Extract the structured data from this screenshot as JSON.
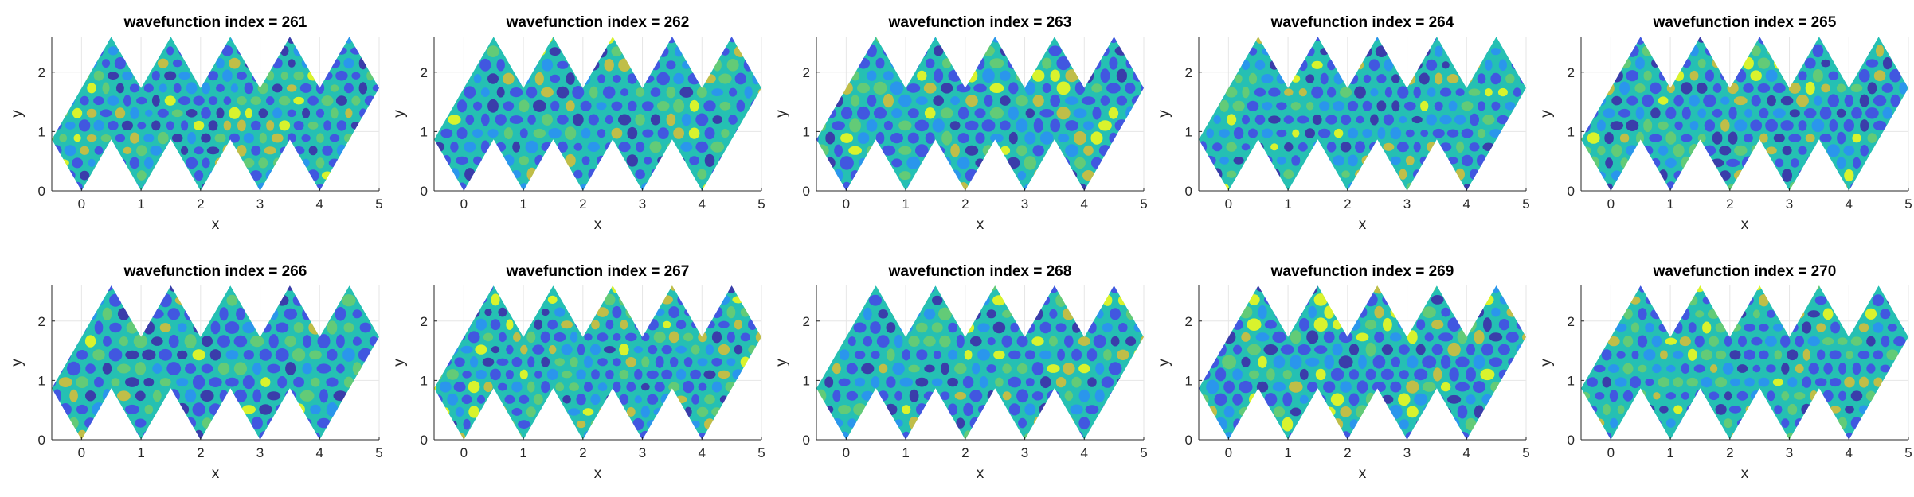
{
  "figure": {
    "colormap": [
      "#3e26a8",
      "#4744e8",
      "#2c8ef6",
      "#1fb5d9",
      "#25c0b3",
      "#6ecc6c",
      "#dcbd35",
      "#f9fb15"
    ],
    "grid": true,
    "axis_color": "#262626",
    "grid_color": "#e6e6e6"
  },
  "chart_data": [
    {
      "type": "heatmap",
      "title": "wavefunction index = 261",
      "xlabel": "x",
      "ylabel": "y",
      "xlim": [
        -0.5,
        5
      ],
      "ylim": [
        0,
        2.6
      ],
      "xticks": [
        "0",
        "1",
        "2",
        "3",
        "4",
        "5"
      ],
      "yticks": [
        "0",
        "1",
        "2"
      ],
      "grid": true
    },
    {
      "type": "heatmap",
      "title": "wavefunction index = 262",
      "xlabel": "x",
      "ylabel": "y",
      "xlim": [
        -0.5,
        5
      ],
      "ylim": [
        0,
        2.6
      ],
      "xticks": [
        "0",
        "1",
        "2",
        "3",
        "4",
        "5"
      ],
      "yticks": [
        "0",
        "1",
        "2"
      ],
      "grid": true
    },
    {
      "type": "heatmap",
      "title": "wavefunction index = 263",
      "xlabel": "x",
      "ylabel": "y",
      "xlim": [
        -0.5,
        5
      ],
      "ylim": [
        0,
        2.6
      ],
      "xticks": [
        "0",
        "1",
        "2",
        "3",
        "4",
        "5"
      ],
      "yticks": [
        "0",
        "1",
        "2"
      ],
      "grid": true
    },
    {
      "type": "heatmap",
      "title": "wavefunction index = 264",
      "xlabel": "x",
      "ylabel": "y",
      "xlim": [
        -0.5,
        5
      ],
      "ylim": [
        0,
        2.6
      ],
      "xticks": [
        "0",
        "1",
        "2",
        "3",
        "4",
        "5"
      ],
      "yticks": [
        "0",
        "1",
        "2"
      ],
      "grid": true
    },
    {
      "type": "heatmap",
      "title": "wavefunction index = 265",
      "xlabel": "x",
      "ylabel": "y",
      "xlim": [
        -0.5,
        5
      ],
      "ylim": [
        0,
        2.6
      ],
      "xticks": [
        "0",
        "1",
        "2",
        "3",
        "4",
        "5"
      ],
      "yticks": [
        "0",
        "1",
        "2"
      ],
      "grid": true
    },
    {
      "type": "heatmap",
      "title": "wavefunction index = 266",
      "xlabel": "x",
      "ylabel": "y",
      "xlim": [
        -0.5,
        5
      ],
      "ylim": [
        0,
        2.6
      ],
      "xticks": [
        "0",
        "1",
        "2",
        "3",
        "4",
        "5"
      ],
      "yticks": [
        "0",
        "1",
        "2"
      ],
      "grid": true
    },
    {
      "type": "heatmap",
      "title": "wavefunction index = 267",
      "xlabel": "x",
      "ylabel": "y",
      "xlim": [
        -0.5,
        5
      ],
      "ylim": [
        0,
        2.6
      ],
      "xticks": [
        "0",
        "1",
        "2",
        "3",
        "4",
        "5"
      ],
      "yticks": [
        "0",
        "1",
        "2"
      ],
      "grid": true
    },
    {
      "type": "heatmap",
      "title": "wavefunction index = 268",
      "xlabel": "x",
      "ylabel": "y",
      "xlim": [
        -0.5,
        5
      ],
      "ylim": [
        0,
        2.6
      ],
      "xticks": [
        "0",
        "1",
        "2",
        "3",
        "4",
        "5"
      ],
      "yticks": [
        "0",
        "1",
        "2"
      ],
      "grid": true
    },
    {
      "type": "heatmap",
      "title": "wavefunction index = 269",
      "xlabel": "x",
      "ylabel": "y",
      "xlim": [
        -0.5,
        5
      ],
      "ylim": [
        0,
        2.6
      ],
      "xticks": [
        "0",
        "1",
        "2",
        "3",
        "4",
        "5"
      ],
      "yticks": [
        "0",
        "1",
        "2"
      ],
      "grid": true
    },
    {
      "type": "heatmap",
      "title": "wavefunction index = 270",
      "xlabel": "x",
      "ylabel": "y",
      "xlim": [
        -0.5,
        5
      ],
      "ylim": [
        0,
        2.6
      ],
      "xticks": [
        "0",
        "1",
        "2",
        "3",
        "4",
        "5"
      ],
      "yticks": [
        "0",
        "1",
        "2"
      ],
      "grid": true
    }
  ]
}
